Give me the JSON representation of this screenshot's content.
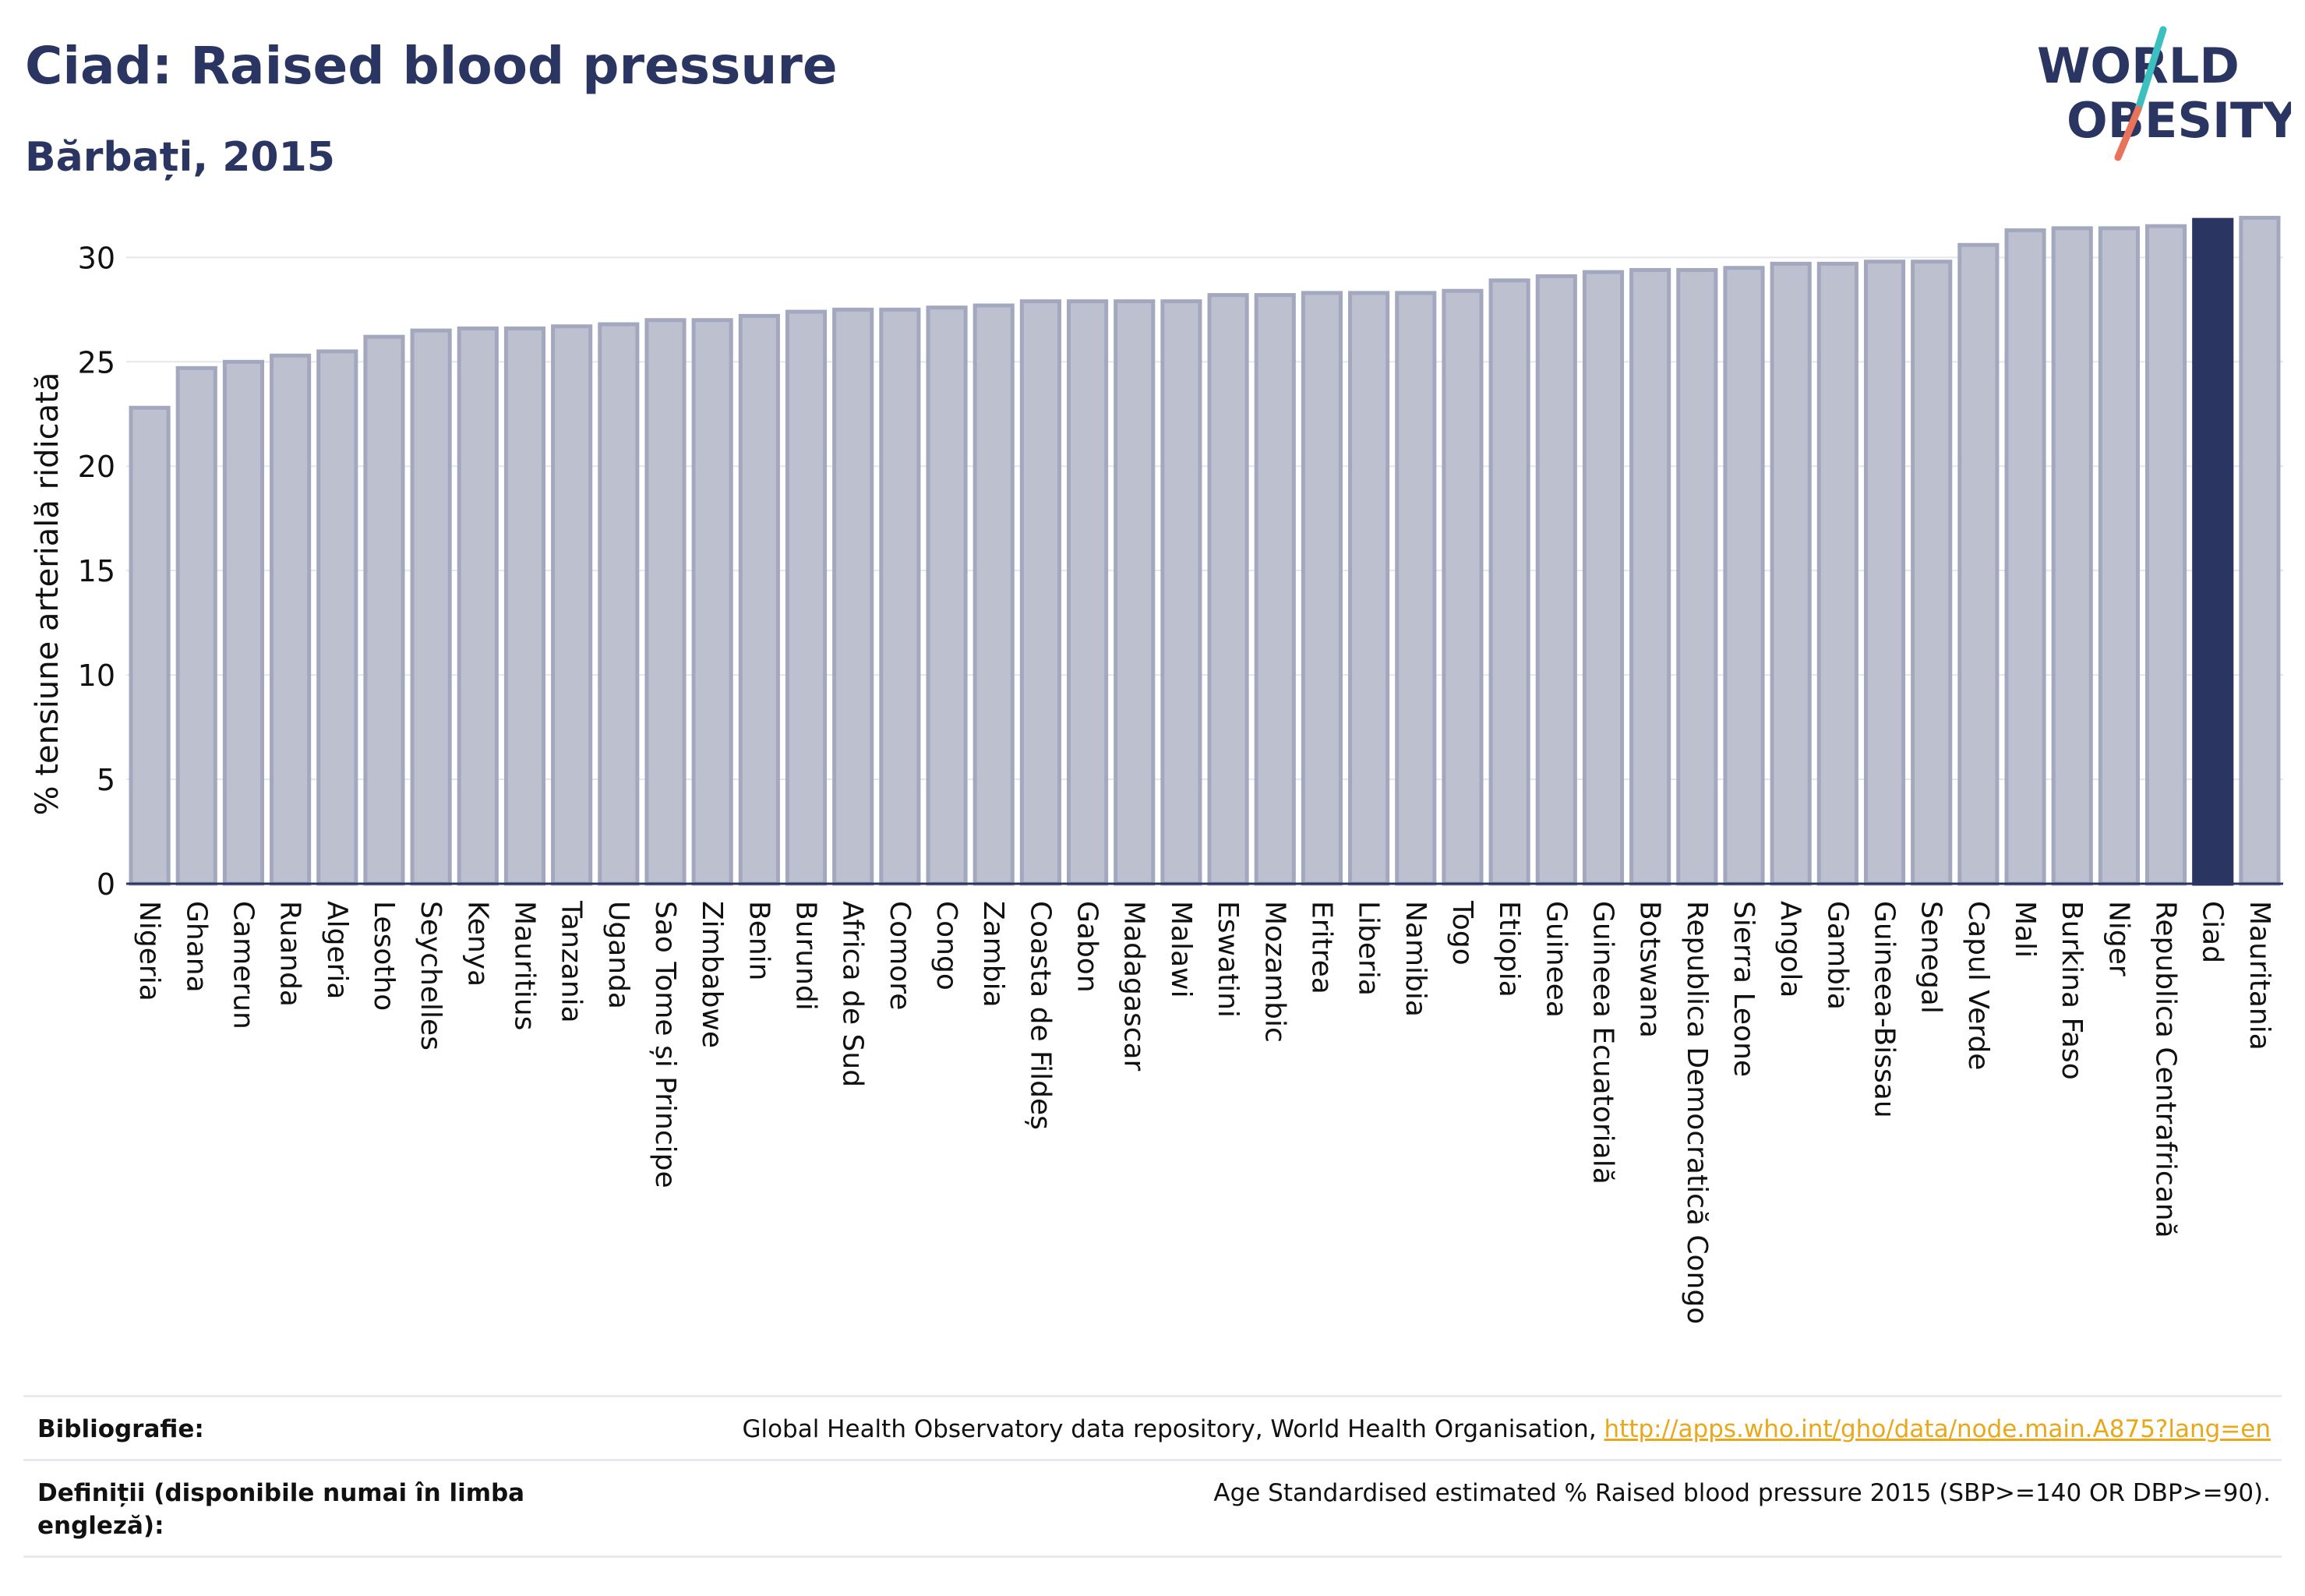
{
  "header": {
    "title": "Ciad: Raised blood pressure",
    "subtitle": "Bărbați, 2015"
  },
  "logo": {
    "line1": "WORLD",
    "line2": "OBESITY",
    "text_color": "#2b3561",
    "slash_top_color": "#3bbfbf",
    "slash_bottom_color": "#e8735a"
  },
  "colors": {
    "bar_fill": "#bdc0cf",
    "bar_stroke": "#a3a8bf",
    "highlight": "#2b3561",
    "axis": "#2b3561",
    "grid": "#e6e7ee",
    "tick_text": "#111111"
  },
  "chart_data": {
    "type": "bar",
    "ylabel": "% tensiune arterială ridicată",
    "xlabel": "",
    "ylim": [
      0,
      33
    ],
    "yticks": [
      0,
      5,
      10,
      15,
      20,
      25,
      30
    ],
    "grid": true,
    "highlight": "Ciad",
    "categories": [
      "Nigeria",
      "Ghana",
      "Camerun",
      "Ruanda",
      "Algeria",
      "Lesotho",
      "Seychelles",
      "Kenya",
      "Mauritius",
      "Tanzania",
      "Uganda",
      "Sao Tome și Principe",
      "Zimbabwe",
      "Benin",
      "Burundi",
      "Africa de Sud",
      "Comore",
      "Congo",
      "Zambia",
      "Coasta de Fildeș",
      "Gabon",
      "Madagascar",
      "Malawi",
      "Eswatini",
      "Mozambic",
      "Eritrea",
      "Liberia",
      "Namibia",
      "Togo",
      "Etiopia",
      "Guineea",
      "Guineea Ecuatorială",
      "Botswana",
      "Republica Democratică Congo",
      "Sierra Leone",
      "Angola",
      "Gambia",
      "Guineea-Bissau",
      "Senegal",
      "Capul Verde",
      "Mali",
      "Burkina Faso",
      "Niger",
      "Republica Centrafricană",
      "Ciad",
      "Mauritania"
    ],
    "values": [
      22.8,
      24.7,
      25.0,
      25.3,
      25.5,
      26.2,
      26.5,
      26.6,
      26.6,
      26.7,
      26.8,
      27.0,
      27.0,
      27.2,
      27.4,
      27.5,
      27.5,
      27.6,
      27.7,
      27.9,
      27.9,
      27.9,
      27.9,
      28.2,
      28.2,
      28.3,
      28.3,
      28.3,
      28.4,
      28.9,
      29.1,
      29.3,
      29.4,
      29.4,
      29.5,
      29.7,
      29.7,
      29.8,
      29.8,
      30.6,
      31.3,
      31.4,
      31.4,
      31.5,
      31.8,
      31.9
    ]
  },
  "footer": {
    "bibliography_label": "Bibliografie:",
    "bibliography_text": "Global Health Observatory data repository, World Health Organisation, ",
    "bibliography_link": "http://apps.who.int/gho/data/node.main.A875?lang=en",
    "definitions_label": "Definiții (disponibile numai în limba engleză):",
    "definitions_text": "Age Standardised estimated % Raised blood pressure 2015 (SBP>=140 OR DBP>=90)."
  }
}
